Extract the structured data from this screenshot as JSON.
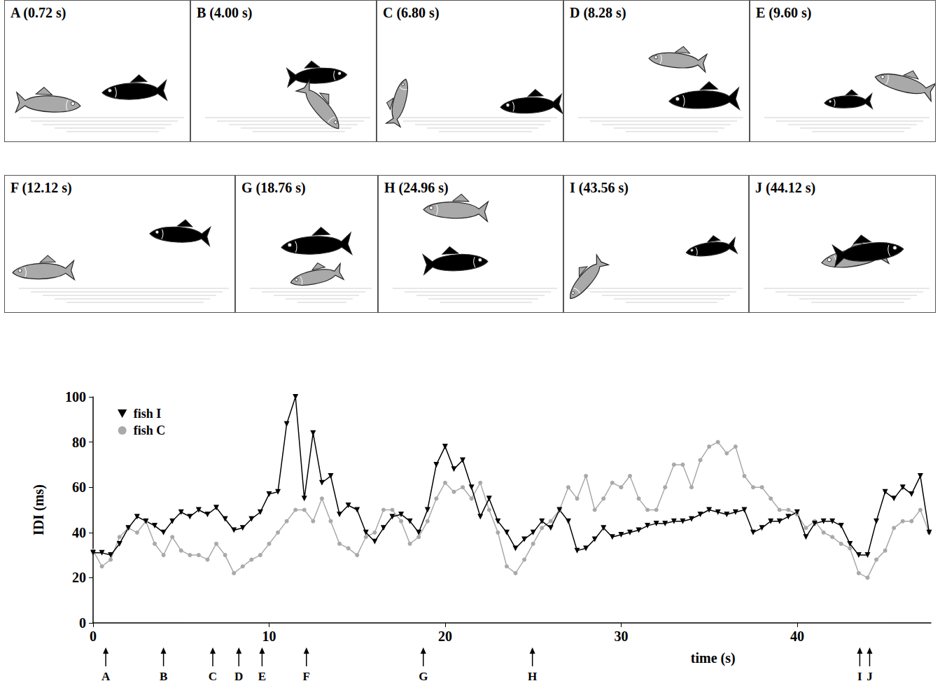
{
  "chart_data": {
    "type": "line",
    "x_label": "time (s)",
    "y_label": "IDI (ms)",
    "xlim": [
      0,
      47.6
    ],
    "xticks": [
      0,
      10,
      20,
      30,
      40
    ],
    "ylim": [
      0,
      100
    ],
    "yticks": [
      0,
      20,
      40,
      60,
      80,
      100
    ],
    "grid": false,
    "legend": "upper left",
    "x": [
      0,
      0.5,
      1,
      1.5,
      2,
      2.5,
      3,
      3.5,
      4,
      4.5,
      5,
      5.5,
      6,
      6.5,
      7,
      7.5,
      8,
      8.5,
      9,
      9.5,
      10,
      10.5,
      11,
      11.5,
      12,
      12.5,
      13,
      13.5,
      14,
      14.5,
      15,
      15.5,
      16,
      16.5,
      17,
      17.5,
      18,
      18.5,
      19,
      19.5,
      20,
      20.5,
      21,
      21.5,
      22,
      22.5,
      23,
      23.5,
      24,
      24.5,
      25,
      25.5,
      26,
      26.5,
      27,
      27.5,
      28,
      28.5,
      29,
      29.5,
      30,
      30.5,
      31,
      31.5,
      32,
      32.5,
      33,
      33.5,
      34,
      34.5,
      35,
      35.5,
      36,
      36.5,
      37,
      37.5,
      38,
      38.5,
      39,
      39.5,
      40,
      40.5,
      41,
      41.5,
      42,
      42.5,
      43,
      43.5,
      44,
      44.5,
      45,
      45.5,
      46,
      46.5,
      47,
      47.5
    ],
    "series": [
      {
        "name": "fish C",
        "color": "#a9a9a9",
        "marker": "circle",
        "line_style": "solid",
        "values": [
          32,
          25,
          28,
          38,
          42,
          40,
          45,
          35,
          30,
          38,
          32,
          30,
          30,
          28,
          35,
          30,
          22,
          25,
          28,
          30,
          35,
          40,
          45,
          50,
          50,
          45,
          55,
          45,
          35,
          33,
          30,
          38,
          40,
          50,
          50,
          45,
          35,
          38,
          45,
          55,
          62,
          58,
          60,
          55,
          62,
          50,
          40,
          25,
          22,
          28,
          35,
          42,
          45,
          50,
          60,
          55,
          65,
          50,
          55,
          62,
          60,
          65,
          55,
          50,
          50,
          60,
          70,
          70,
          60,
          72,
          78,
          80,
          75,
          78,
          65,
          60,
          60,
          55,
          50,
          50,
          48,
          42,
          45,
          40,
          38,
          35,
          33,
          22,
          20,
          28,
          32,
          42,
          45,
          45,
          50,
          40
        ]
      },
      {
        "name": "fish I",
        "color": "#000000",
        "marker": "triangle-down",
        "line_style": "solid",
        "values": [
          31,
          31,
          30,
          35,
          42,
          47,
          45,
          43,
          40,
          45,
          49,
          47,
          50,
          48,
          51,
          46,
          41,
          42,
          46,
          49,
          57,
          58,
          88,
          100,
          55,
          84,
          62,
          65,
          48,
          52,
          50,
          40,
          36,
          42,
          47,
          48,
          45,
          40,
          50,
          70,
          78,
          68,
          72,
          60,
          47,
          55,
          45,
          40,
          33,
          37,
          40,
          45,
          42,
          50,
          45,
          32,
          33,
          37,
          42,
          38,
          39,
          40,
          41,
          43,
          44,
          44,
          45,
          45,
          46,
          48,
          50,
          49,
          48,
          49,
          50,
          40,
          42,
          45,
          45,
          47,
          49,
          38,
          44,
          45,
          45,
          43,
          35,
          30,
          30,
          45,
          58,
          55,
          60,
          57,
          65,
          40
        ]
      }
    ],
    "events": [
      {
        "label": "A",
        "time": 0.72,
        "title": "A (0.72 s)"
      },
      {
        "label": "B",
        "time": 4.0,
        "title": "B (4.00 s)"
      },
      {
        "label": "C",
        "time": 6.8,
        "title": "C (6.80 s)"
      },
      {
        "label": "D",
        "time": 8.28,
        "title": "D (8.28 s)"
      },
      {
        "label": "E",
        "time": 9.6,
        "title": "E (9.60 s)"
      },
      {
        "label": "F",
        "time": 12.12,
        "title": "F (12.12 s)"
      },
      {
        "label": "G",
        "time": 18.76,
        "title": "G (18.76 s)"
      },
      {
        "label": "H",
        "time": 24.96,
        "title": "H (24.96 s)"
      },
      {
        "label": "I",
        "time": 43.56,
        "title": "I (43.56 s)"
      },
      {
        "label": "J",
        "time": 44.12,
        "title": "J (44.12 s)"
      }
    ]
  }
}
